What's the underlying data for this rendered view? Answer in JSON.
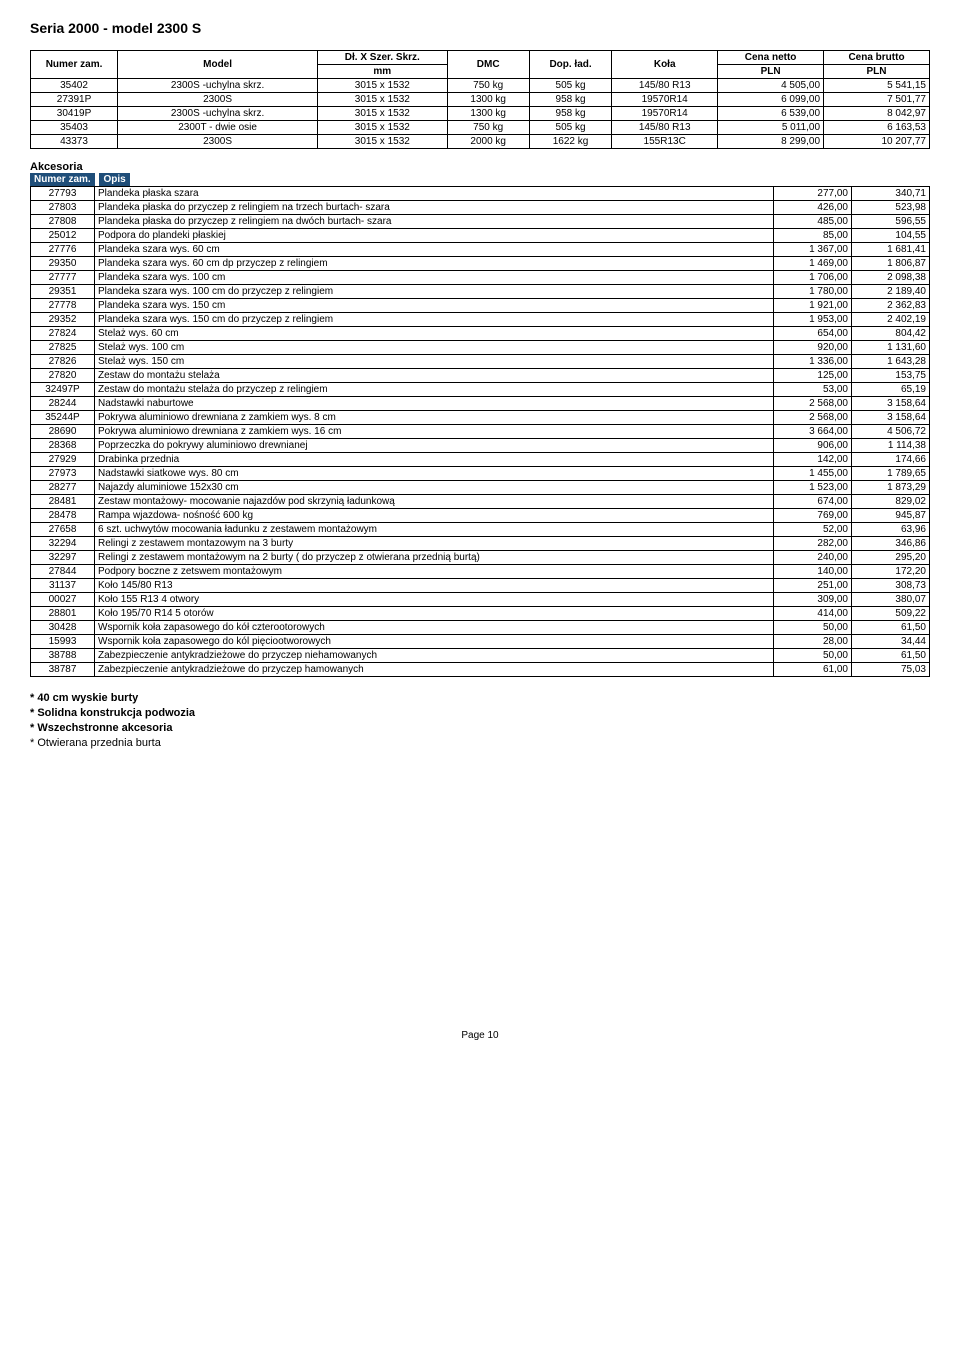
{
  "title": "Seria 2000  - model  2300 S",
  "mainHeader": {
    "c1": "Numer zam.",
    "c2": "Model",
    "c3": "Dł. X Szer. Skrz.",
    "c3b": "mm",
    "c4": "DMC",
    "c5": "Dop. ład.",
    "c6": "Koła",
    "c7": "Cena netto",
    "c7b": "PLN",
    "c8": "Cena brutto",
    "c8b": "PLN"
  },
  "mainRows": [
    {
      "code": "35402",
      "model": "2300S -uchylna skrz.",
      "dim": "3015 x 1532",
      "dmc": "750 kg",
      "lad": "505 kg",
      "kola": "145/80 R13",
      "net": "4 505,00",
      "brut": "5 541,15"
    },
    {
      "code": "27391P",
      "model": "2300S",
      "dim": "3015 x 1532",
      "dmc": "1300 kg",
      "lad": "958 kg",
      "kola": "19570R14",
      "net": "6 099,00",
      "brut": "7 501,77"
    },
    {
      "code": "30419P",
      "model": "2300S -uchylna skrz.",
      "dim": "3015 x 1532",
      "dmc": "1300 kg",
      "lad": "958 kg",
      "kola": "19570R14",
      "net": "6 539,00",
      "brut": "8 042,97"
    },
    {
      "code": "35403",
      "model": "2300T - dwie osie",
      "dim": "3015 x 1532",
      "dmc": "750 kg",
      "lad": "505 kg",
      "kola": "145/80 R13",
      "net": "5 011,00",
      "brut": "6 163,53"
    },
    {
      "code": "43373",
      "model": "2300S",
      "dim": "3015 x 1532",
      "dmc": "2000 kg",
      "lad": "1622 kg",
      "kola": "155R13C",
      "net": "8 299,00",
      "brut": "10 207,77"
    }
  ],
  "accLabel": "Akcesoria",
  "accHeader": {
    "c1": "Numer zam.",
    "c2": "Opis"
  },
  "accRows": [
    {
      "code": "27793",
      "desc": "Plandeka płaska szara",
      "n": "277,00",
      "b": "340,71"
    },
    {
      "code": "27803",
      "desc": "Plandeka płaska do przyczep z relingiem na trzech burtach- szara",
      "n": "426,00",
      "b": "523,98"
    },
    {
      "code": "27808",
      "desc": "Plandeka płaska do przyczep z relingiem na dwóch burtach- szara",
      "n": "485,00",
      "b": "596,55"
    },
    {
      "code": "25012",
      "desc": "Podpora do plandeki płaskiej",
      "n": "85,00",
      "b": "104,55"
    },
    {
      "code": "27776",
      "desc": "Plandeka szara wys. 60 cm",
      "n": "1 367,00",
      "b": "1 681,41"
    },
    {
      "code": "29350",
      "desc": "Plandeka szara wys. 60 cm dp przyczep z relingiem",
      "n": "1 469,00",
      "b": "1 806,87"
    },
    {
      "code": "27777",
      "desc": "Plandeka szara wys. 100 cm",
      "n": "1 706,00",
      "b": "2 098,38"
    },
    {
      "code": "29351",
      "desc": "Plandeka szara wys. 100 cm do przyczep z relingiem",
      "n": "1 780,00",
      "b": "2 189,40"
    },
    {
      "code": "27778",
      "desc": "Plandeka szara wys. 150 cm",
      "n": "1 921,00",
      "b": "2 362,83"
    },
    {
      "code": "29352",
      "desc": "Plandeka szara wys. 150 cm do przyczep z relingiem",
      "n": "1 953,00",
      "b": "2 402,19"
    },
    {
      "code": "27824",
      "desc": "Stelaż wys. 60 cm",
      "n": "654,00",
      "b": "804,42"
    },
    {
      "code": "27825",
      "desc": "Stelaż wys. 100 cm",
      "n": "920,00",
      "b": "1 131,60"
    },
    {
      "code": "27826",
      "desc": "Stelaż wys. 150 cm",
      "n": "1 336,00",
      "b": "1 643,28"
    },
    {
      "code": "27820",
      "desc": "Zestaw do montażu stelaża",
      "n": "125,00",
      "b": "153,75"
    },
    {
      "code": "32497P",
      "desc": "Zestaw do montażu stelaża do przyczep z relingiem",
      "n": "53,00",
      "b": "65,19"
    },
    {
      "code": "28244",
      "desc": "Nadstawki naburtowe",
      "n": "2 568,00",
      "b": "3 158,64"
    },
    {
      "code": "35244P",
      "desc": "Pokrywa aluminiowo drewniana z zamkiem wys. 8 cm",
      "n": "2 568,00",
      "b": "3 158,64"
    },
    {
      "code": "28690",
      "desc": "Pokrywa aluminiowo drewniana z zamkiem wys. 16 cm",
      "n": "3 664,00",
      "b": "4 506,72"
    },
    {
      "code": "28368",
      "desc": "Poprzeczka do pokrywy aluminiowo drewnianej",
      "n": "906,00",
      "b": "1 114,38"
    },
    {
      "code": "27929",
      "desc": "Drabinka przednia",
      "n": "142,00",
      "b": "174,66"
    },
    {
      "code": "27973",
      "desc": "Nadstawki siatkowe wys. 80 cm",
      "n": "1 455,00",
      "b": "1 789,65"
    },
    {
      "code": "28277",
      "desc": "Najazdy aluminiowe 152x30 cm",
      "n": "1 523,00",
      "b": "1 873,29"
    },
    {
      "code": "28481",
      "desc": "Zestaw montażowy- mocowanie najazdów pod skrzynią ładunkową",
      "n": "674,00",
      "b": "829,02"
    },
    {
      "code": "28478",
      "desc": "Rampa wjazdowa- nośność 600 kg",
      "n": "769,00",
      "b": "945,87"
    },
    {
      "code": "27658",
      "desc": " 6 szt. uchwytów mocowania ładunku z zestawem montażowym",
      "n": "52,00",
      "b": "63,96"
    },
    {
      "code": "32294",
      "desc": "Relingi z zestawem montazowym na 3 burty",
      "n": "282,00",
      "b": "346,86"
    },
    {
      "code": "32297",
      "desc": "Relingi z zestawem montażowym na 2 burty ( do przyczep z otwierana przednią burtą)",
      "n": "240,00",
      "b": "295,20"
    },
    {
      "code": "27844",
      "desc": "Podpory boczne z zetswem montażowym",
      "n": "140,00",
      "b": "172,20"
    },
    {
      "code": "31137",
      "desc": "Koło 145/80 R13",
      "n": "251,00",
      "b": "308,73"
    },
    {
      "code": "00027",
      "desc": "Koło 155 R13   4 otwory",
      "n": "309,00",
      "b": "380,07"
    },
    {
      "code": "28801",
      "desc": "Koło 195/70 R14   5 otorów",
      "n": "414,00",
      "b": "509,22"
    },
    {
      "code": "30428",
      "desc": "Wspornik koła zapasowego do kół czterootorowych",
      "n": "50,00",
      "b": "61,50"
    },
    {
      "code": "15993",
      "desc": "Wspornik koła zapasowego do kól pięciootworowych",
      "n": "28,00",
      "b": "34,44"
    },
    {
      "code": "38788",
      "desc": "Zabezpieczenie antykradzieżowe do przyczep niehamowanych",
      "n": "50,00",
      "b": "61,50"
    },
    {
      "code": "38787",
      "desc": "Zabezpieczenie antykradzieżowe do przyczep hamowanych",
      "n": "61,00",
      "b": "75,03"
    }
  ],
  "features": [
    "* 40 cm wyskie burty",
    "* Solidna konstrukcja podwozia",
    "* Wszechstronne akcesoria",
    "* Otwierana przednia burta"
  ],
  "pageNum": "Page 10",
  "colors": {
    "headerBg": "#1f4e79",
    "headerFg": "#ffffff",
    "border": "#000000",
    "text": "#000000",
    "bg": "#ffffff"
  },
  "mainColWidths": [
    "74px",
    "170px",
    "110px",
    "70px",
    "70px",
    "90px",
    "90px",
    "90px"
  ]
}
